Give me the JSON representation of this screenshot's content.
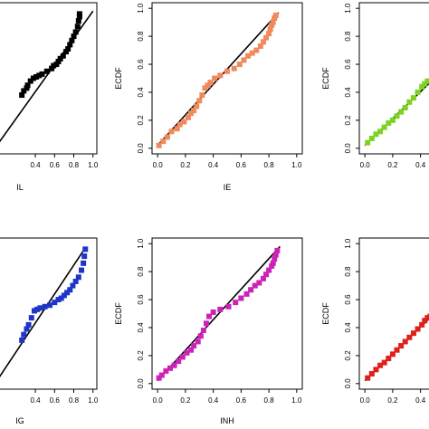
{
  "chart_data": [
    {
      "type": "scatter",
      "xlabel": "IL",
      "ylabel": "",
      "xlim": [
        0,
        1
      ],
      "ylim": [
        0,
        1
      ],
      "xticks": [
        "0.4",
        "0.6",
        "0.8",
        "1.0"
      ],
      "xtick_values": [
        0.4,
        0.6,
        0.8,
        1.0
      ],
      "yticks": [],
      "ytick_values": [],
      "color": "#000000",
      "reference_line": [
        [
          0,
          0.02
        ],
        [
          1.0,
          0.98
        ]
      ],
      "points": [
        [
          0.26,
          0.38
        ],
        [
          0.28,
          0.41
        ],
        [
          0.31,
          0.43
        ],
        [
          0.32,
          0.45
        ],
        [
          0.35,
          0.48
        ],
        [
          0.38,
          0.5
        ],
        [
          0.41,
          0.51
        ],
        [
          0.44,
          0.52
        ],
        [
          0.47,
          0.53
        ],
        [
          0.52,
          0.55
        ],
        [
          0.57,
          0.57
        ],
        [
          0.59,
          0.59
        ],
        [
          0.62,
          0.6
        ],
        [
          0.64,
          0.62
        ],
        [
          0.66,
          0.64
        ],
        [
          0.69,
          0.66
        ],
        [
          0.72,
          0.69
        ],
        [
          0.74,
          0.71
        ],
        [
          0.76,
          0.74
        ],
        [
          0.78,
          0.77
        ],
        [
          0.8,
          0.8
        ],
        [
          0.82,
          0.83
        ],
        [
          0.84,
          0.87
        ],
        [
          0.85,
          0.91
        ],
        [
          0.86,
          0.94
        ],
        [
          0.86,
          0.96
        ]
      ]
    },
    {
      "type": "scatter",
      "xlabel": "IE",
      "ylabel": "ECDF",
      "xlim": [
        0,
        1
      ],
      "ylim": [
        0,
        1
      ],
      "xticks": [
        "0.0",
        "0.2",
        "0.4",
        "0.6",
        "0.8",
        "1.0"
      ],
      "xtick_values": [
        0,
        0.2,
        0.4,
        0.6,
        0.8,
        1.0
      ],
      "yticks": [
        "0.0",
        "0.2",
        "0.4",
        "0.6",
        "0.8",
        "1.0"
      ],
      "ytick_values": [
        0,
        0.2,
        0.4,
        0.6,
        0.8,
        1.0
      ],
      "color": "#f08a5d",
      "reference_line": [
        [
          0,
          0.02
        ],
        [
          0.87,
          0.97
        ]
      ],
      "points": [
        [
          0.01,
          0.02
        ],
        [
          0.04,
          0.05
        ],
        [
          0.07,
          0.08
        ],
        [
          0.1,
          0.12
        ],
        [
          0.14,
          0.14
        ],
        [
          0.16,
          0.17
        ],
        [
          0.19,
          0.19
        ],
        [
          0.22,
          0.22
        ],
        [
          0.24,
          0.25
        ],
        [
          0.26,
          0.27
        ],
        [
          0.28,
          0.3
        ],
        [
          0.3,
          0.34
        ],
        [
          0.32,
          0.38
        ],
        [
          0.34,
          0.43
        ],
        [
          0.36,
          0.45
        ],
        [
          0.38,
          0.47
        ],
        [
          0.41,
          0.5
        ],
        [
          0.45,
          0.52
        ],
        [
          0.5,
          0.55
        ],
        [
          0.55,
          0.57
        ],
        [
          0.59,
          0.6
        ],
        [
          0.62,
          0.63
        ],
        [
          0.65,
          0.66
        ],
        [
          0.68,
          0.68
        ],
        [
          0.71,
          0.7
        ],
        [
          0.74,
          0.73
        ],
        [
          0.76,
          0.76
        ],
        [
          0.78,
          0.79
        ],
        [
          0.8,
          0.82
        ],
        [
          0.81,
          0.85
        ],
        [
          0.82,
          0.88
        ],
        [
          0.83,
          0.9
        ],
        [
          0.84,
          0.93
        ],
        [
          0.85,
          0.95
        ]
      ]
    },
    {
      "type": "scatter",
      "xlabel": "",
      "ylabel": "ECDF",
      "xlim": [
        0,
        1
      ],
      "ylim": [
        0,
        1
      ],
      "xticks": [
        "0.0",
        "0.2",
        "0.4"
      ],
      "xtick_values": [
        0,
        0.2,
        0.4
      ],
      "yticks": [
        "0.0",
        "0.2",
        "0.4",
        "0.6",
        "0.8",
        "1.0"
      ],
      "ytick_values": [
        0,
        0.2,
        0.4,
        0.6,
        0.8,
        1.0
      ],
      "color": "#7ed321",
      "reference_line": [
        [
          0,
          0.02
        ],
        [
          1.0,
          0.98
        ]
      ],
      "points": [
        [
          0.02,
          0.04
        ],
        [
          0.05,
          0.07
        ],
        [
          0.08,
          0.1
        ],
        [
          0.11,
          0.12
        ],
        [
          0.14,
          0.15
        ],
        [
          0.17,
          0.18
        ],
        [
          0.2,
          0.2
        ],
        [
          0.23,
          0.23
        ],
        [
          0.26,
          0.26
        ],
        [
          0.29,
          0.29
        ],
        [
          0.32,
          0.33
        ],
        [
          0.35,
          0.36
        ],
        [
          0.38,
          0.4
        ],
        [
          0.41,
          0.44
        ],
        [
          0.43,
          0.46
        ],
        [
          0.45,
          0.48
        ]
      ]
    },
    {
      "type": "scatter",
      "xlabel": "IG",
      "ylabel": "",
      "xlim": [
        0,
        1
      ],
      "ylim": [
        0,
        1
      ],
      "xticks": [
        "0.4",
        "0.6",
        "0.8",
        "1.0"
      ],
      "xtick_values": [
        0.4,
        0.6,
        0.8,
        1.0
      ],
      "yticks": [],
      "ytick_values": [],
      "color": "#1f35c8",
      "reference_line": [
        [
          0,
          0.02
        ],
        [
          0.92,
          0.97
        ]
      ],
      "points": [
        [
          0.26,
          0.31
        ],
        [
          0.28,
          0.35
        ],
        [
          0.31,
          0.39
        ],
        [
          0.33,
          0.42
        ],
        [
          0.36,
          0.47
        ],
        [
          0.39,
          0.52
        ],
        [
          0.42,
          0.53
        ],
        [
          0.45,
          0.54
        ],
        [
          0.5,
          0.55
        ],
        [
          0.55,
          0.56
        ],
        [
          0.6,
          0.58
        ],
        [
          0.64,
          0.6
        ],
        [
          0.67,
          0.61
        ],
        [
          0.7,
          0.63
        ],
        [
          0.73,
          0.65
        ],
        [
          0.76,
          0.67
        ],
        [
          0.79,
          0.7
        ],
        [
          0.82,
          0.73
        ],
        [
          0.85,
          0.76
        ],
        [
          0.88,
          0.81
        ],
        [
          0.9,
          0.86
        ],
        [
          0.91,
          0.91
        ],
        [
          0.92,
          0.96
        ]
      ]
    },
    {
      "type": "scatter",
      "xlabel": "INH",
      "ylabel": "ECDF",
      "xlim": [
        0,
        1
      ],
      "ylim": [
        0,
        1
      ],
      "xticks": [
        "0.0",
        "0.2",
        "0.4",
        "0.6",
        "0.8",
        "1.0"
      ],
      "xtick_values": [
        0,
        0.2,
        0.4,
        0.6,
        0.8,
        1.0
      ],
      "yticks": [
        "0.0",
        "0.2",
        "0.4",
        "0.6",
        "0.8",
        "1.0"
      ],
      "ytick_values": [
        0,
        0.2,
        0.4,
        0.6,
        0.8,
        1.0
      ],
      "color": "#cc22b8",
      "reference_line": [
        [
          0,
          0.02
        ],
        [
          0.88,
          0.98
        ]
      ],
      "points": [
        [
          0.01,
          0.04
        ],
        [
          0.03,
          0.06
        ],
        [
          0.06,
          0.09
        ],
        [
          0.09,
          0.11
        ],
        [
          0.12,
          0.13
        ],
        [
          0.15,
          0.16
        ],
        [
          0.18,
          0.19
        ],
        [
          0.21,
          0.22
        ],
        [
          0.24,
          0.24
        ],
        [
          0.26,
          0.27
        ],
        [
          0.29,
          0.3
        ],
        [
          0.31,
          0.34
        ],
        [
          0.33,
          0.38
        ],
        [
          0.35,
          0.43
        ],
        [
          0.37,
          0.48
        ],
        [
          0.4,
          0.51
        ],
        [
          0.45,
          0.53
        ],
        [
          0.51,
          0.55
        ],
        [
          0.56,
          0.58
        ],
        [
          0.6,
          0.61
        ],
        [
          0.64,
          0.64
        ],
        [
          0.67,
          0.67
        ],
        [
          0.7,
          0.7
        ],
        [
          0.73,
          0.72
        ],
        [
          0.76,
          0.75
        ],
        [
          0.78,
          0.78
        ],
        [
          0.8,
          0.81
        ],
        [
          0.82,
          0.84
        ],
        [
          0.83,
          0.86
        ],
        [
          0.84,
          0.89
        ],
        [
          0.85,
          0.92
        ],
        [
          0.86,
          0.95
        ]
      ]
    },
    {
      "type": "scatter",
      "xlabel": "",
      "ylabel": "ECDF",
      "xlim": [
        0,
        1
      ],
      "ylim": [
        0,
        1
      ],
      "xticks": [
        "0.0",
        "0.2",
        "0.4"
      ],
      "xtick_values": [
        0,
        0.2,
        0.4
      ],
      "yticks": [
        "0.0",
        "0.2",
        "0.4",
        "0.6",
        "0.8",
        "1.0"
      ],
      "ytick_values": [
        0,
        0.2,
        0.4,
        0.6,
        0.8,
        1.0
      ],
      "color": "#e0201a",
      "reference_line": [
        [
          0,
          0.02
        ],
        [
          1.0,
          0.98
        ]
      ],
      "points": [
        [
          0.02,
          0.04
        ],
        [
          0.05,
          0.07
        ],
        [
          0.08,
          0.1
        ],
        [
          0.11,
          0.13
        ],
        [
          0.14,
          0.15
        ],
        [
          0.17,
          0.18
        ],
        [
          0.2,
          0.21
        ],
        [
          0.23,
          0.24
        ],
        [
          0.26,
          0.27
        ],
        [
          0.29,
          0.3
        ],
        [
          0.32,
          0.33
        ],
        [
          0.35,
          0.36
        ],
        [
          0.38,
          0.39
        ],
        [
          0.41,
          0.42
        ],
        [
          0.43,
          0.45
        ],
        [
          0.45,
          0.47
        ],
        [
          0.47,
          0.48
        ]
      ]
    }
  ]
}
